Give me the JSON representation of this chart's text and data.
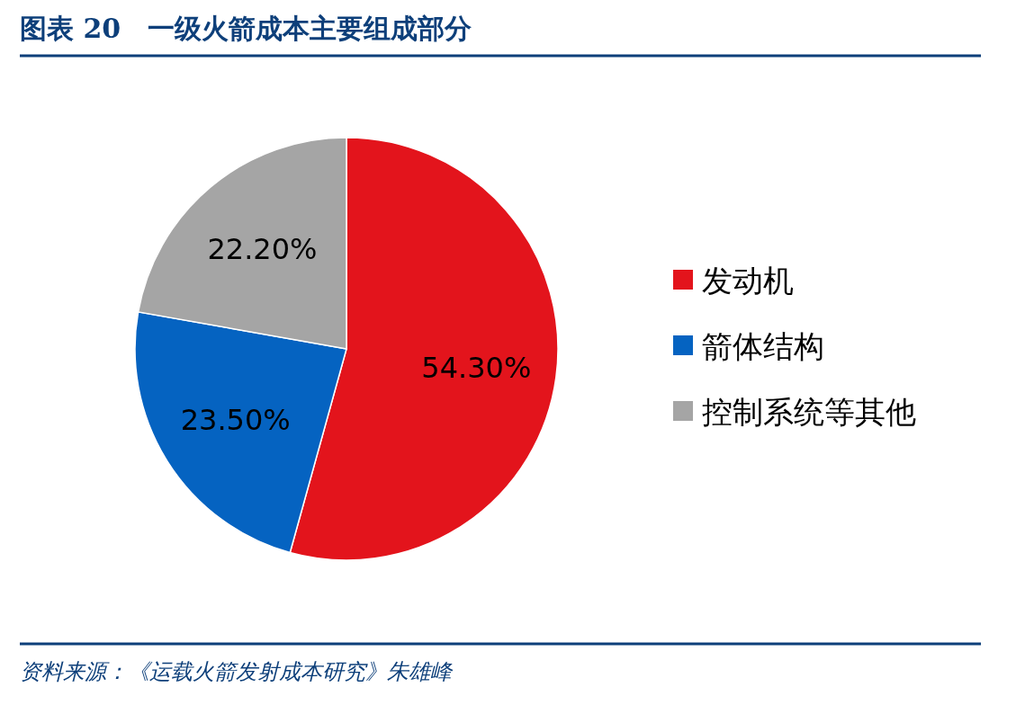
{
  "chart_data": {
    "type": "pie",
    "title": "图表 20　一级火箭成本主要组成部分",
    "categories": [
      "发动机",
      "箭体结构",
      "控制系统等其他"
    ],
    "values": [
      54.3,
      23.5,
      22.2
    ],
    "colors": [
      "#e3141c",
      "#0563c1",
      "#a5a5a5"
    ],
    "value_labels": [
      "54.30%",
      "23.50%",
      "22.20%"
    ],
    "legend": "right",
    "annotations": [
      "资料来源：《运载火箭发射成本研究》朱雄峰"
    ]
  }
}
